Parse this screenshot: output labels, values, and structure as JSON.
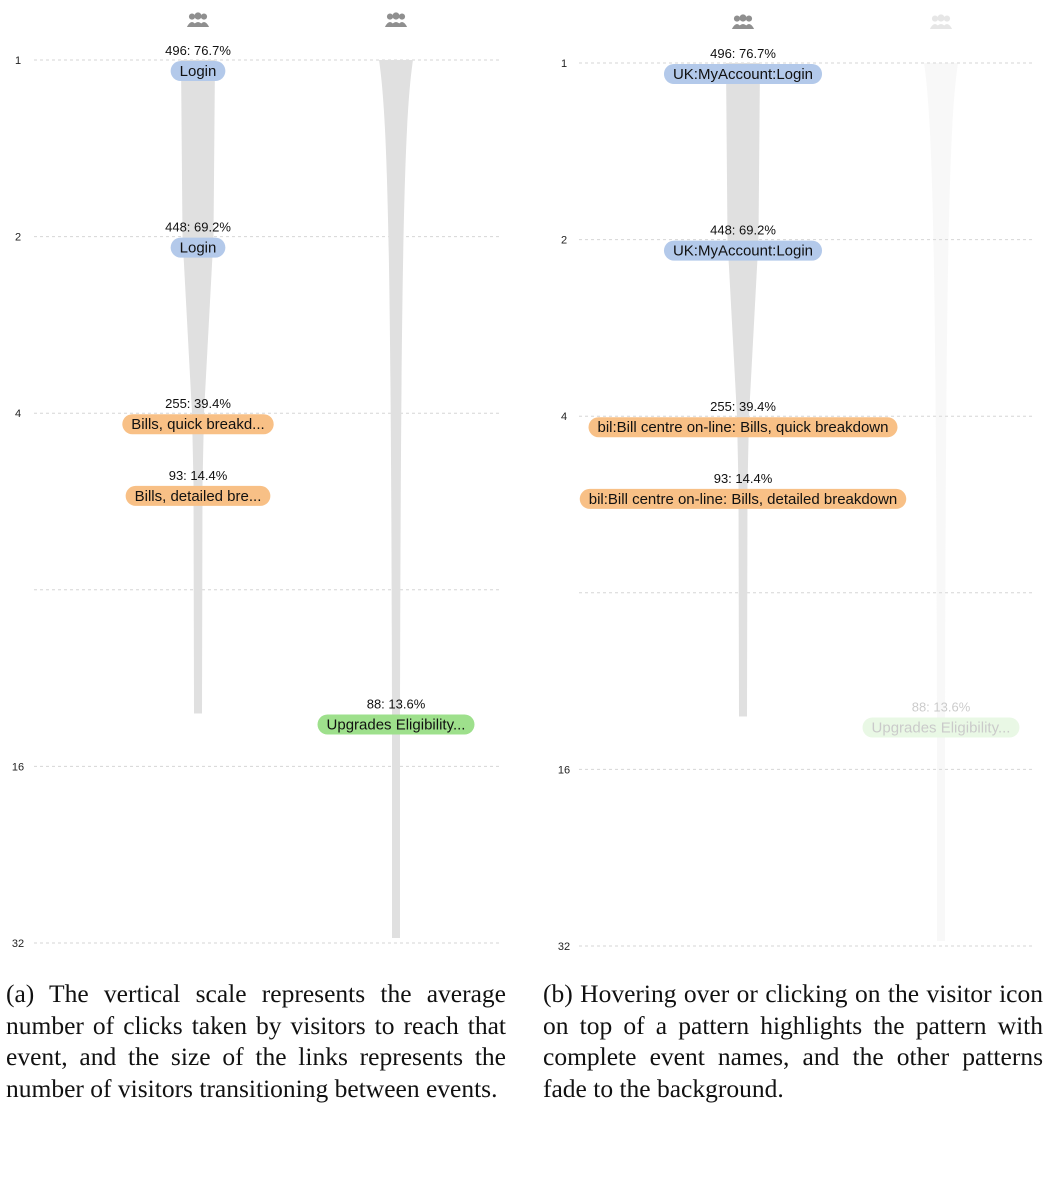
{
  "colors": {
    "blue": "#b3c9ea",
    "orange": "#f8c086",
    "green": "#9ee08c",
    "funnel": "#e0e0e0",
    "icon": "#8f8f8f"
  },
  "panel_a": {
    "axis_ticks": [
      {
        "value": 1,
        "label": "1"
      },
      {
        "value": 2,
        "label": "2"
      },
      {
        "value": 4,
        "label": "4"
      },
      {
        "value": 8,
        "label": ""
      },
      {
        "value": 16,
        "label": "16"
      },
      {
        "value": 32,
        "label": "32"
      }
    ],
    "patterns": [
      {
        "icon": "visitors-icon",
        "highlighted": true,
        "events": [
          {
            "step": 1,
            "count_label": "496: 76.7%",
            "name": "Login",
            "category": "blue"
          },
          {
            "step": 2,
            "count_label": "448: 69.2%",
            "name": "Login",
            "category": "blue"
          },
          {
            "step": 4,
            "count_label": "255: 39.4%",
            "name": "Bills, quick breakd...",
            "category": "orange"
          },
          {
            "step": 5.3,
            "count_label": "93: 14.4%",
            "name": "Bills, detailed bre...",
            "category": "orange"
          }
        ]
      },
      {
        "icon": "visitors-icon",
        "highlighted": true,
        "events": [
          {
            "step": 13,
            "count_label": "88: 13.6%",
            "name": "Upgrades Eligibility...",
            "category": "green"
          }
        ]
      }
    ]
  },
  "panel_b": {
    "axis_ticks": [
      {
        "value": 1,
        "label": "1"
      },
      {
        "value": 2,
        "label": "2"
      },
      {
        "value": 4,
        "label": "4"
      },
      {
        "value": 8,
        "label": ""
      },
      {
        "value": 16,
        "label": "16"
      },
      {
        "value": 32,
        "label": "32"
      }
    ],
    "patterns": [
      {
        "icon": "visitors-icon",
        "highlighted": true,
        "events": [
          {
            "step": 1,
            "count_label": "496: 76.7%",
            "name": "UK:MyAccount:Login",
            "category": "blue"
          },
          {
            "step": 2,
            "count_label": "448: 69.2%",
            "name": "UK:MyAccount:Login",
            "category": "blue"
          },
          {
            "step": 4,
            "count_label": "255: 39.4%",
            "name": "bil:Bill centre on-line: Bills, quick breakdown",
            "category": "orange"
          },
          {
            "step": 5.3,
            "count_label": "93: 14.4%",
            "name": "bil:Bill centre on-line: Bills, detailed breakdown",
            "category": "orange"
          }
        ]
      },
      {
        "icon": "visitors-icon",
        "highlighted": false,
        "events": [
          {
            "step": 13,
            "count_label": "88: 13.6%",
            "name": "Upgrades Eligibility...",
            "category": "green"
          }
        ]
      }
    ]
  },
  "captions": {
    "a": "(a) The vertical scale represents the average number of clicks taken by visitors to reach that event, and the size of the links represents the number of visitors transitioning between events.",
    "b": "(b) Hovering over or clicking on the visitor icon on top of a pattern highlights the pattern with complete event names, and the other patterns fade to the background."
  }
}
